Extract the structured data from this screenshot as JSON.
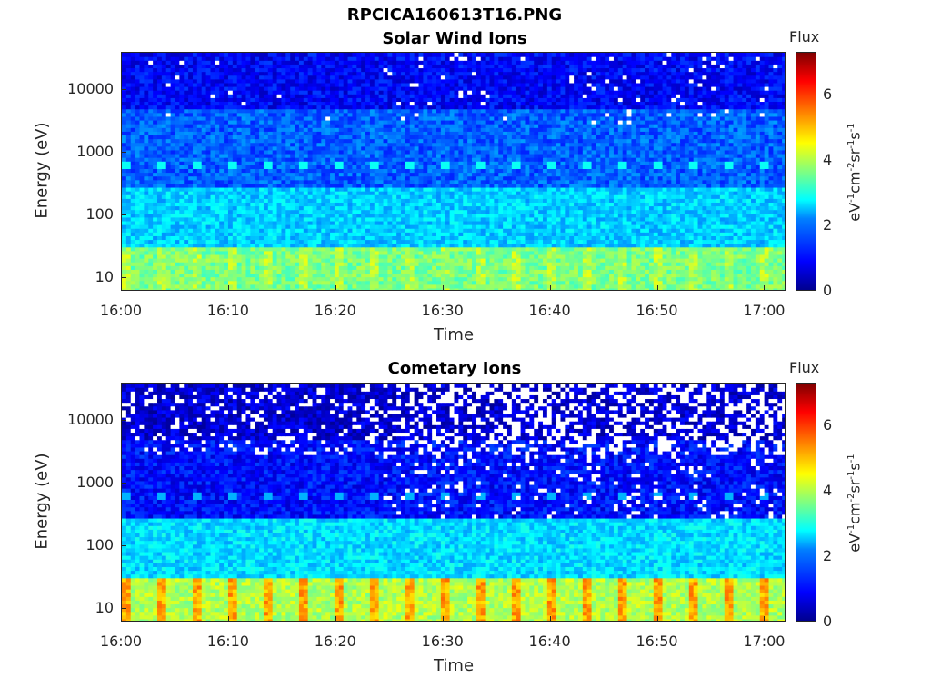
{
  "figure": {
    "filename_title": "RPCICA160613T16.PNG"
  },
  "chart_data": [
    {
      "type": "heatmap",
      "title": "Solar Wind Ions",
      "xlabel": "Time",
      "ylabel": "Energy (eV)",
      "x_ticks": [
        "16:00",
        "16:10",
        "16:20",
        "16:30",
        "16:40",
        "16:50",
        "17:00"
      ],
      "x_range": [
        "16:00",
        "17:02"
      ],
      "y_scale": "log",
      "y_ticks": [
        "10",
        "100",
        "1000",
        "10000"
      ],
      "y_range": [
        6,
        40000
      ],
      "colorbar": {
        "title": "Flux",
        "label": "eV-1cm-2sr-1s-1",
        "ticks": [
          "0",
          "2",
          "4",
          "6"
        ],
        "range": [
          0,
          7.3
        ]
      },
      "description_bands": [
        {
          "energy_range": [
            6,
            30
          ],
          "flux_level": 3.6
        },
        {
          "energy_range": [
            30,
            300
          ],
          "flux_level": 2.4
        },
        {
          "energy_range": [
            300,
            5000
          ],
          "flux_level": 1.6
        },
        {
          "energy_range": [
            5000,
            40000
          ],
          "flux_level": 0.9
        }
      ],
      "periodic_feature": {
        "energy": 650,
        "flux_level": 2.8
      }
    },
    {
      "type": "heatmap",
      "title": "Cometary Ions",
      "xlabel": "Time",
      "ylabel": "Energy (eV)",
      "x_ticks": [
        "16:00",
        "16:10",
        "16:20",
        "16:30",
        "16:40",
        "16:50",
        "17:00"
      ],
      "x_range": [
        "16:00",
        "17:02"
      ],
      "y_scale": "log",
      "y_ticks": [
        "10",
        "100",
        "1000",
        "10000"
      ],
      "y_range": [
        6,
        40000
      ],
      "colorbar": {
        "title": "Flux",
        "label": "eV-1cm-2sr-1s-1",
        "ticks": [
          "0",
          "2",
          "4",
          "6"
        ],
        "range": [
          0,
          7.3
        ]
      },
      "description_bands": [
        {
          "energy_range": [
            6,
            30
          ],
          "flux_level": 4.0
        },
        {
          "energy_range": [
            30,
            300
          ],
          "flux_level": 2.5
        },
        {
          "energy_range": [
            300,
            5000
          ],
          "flux_level": 1.0
        },
        {
          "energy_range": [
            5000,
            40000
          ],
          "flux_level": 0.6
        }
      ],
      "periodic_feature": {
        "energy": 650,
        "flux_level": 2.2
      }
    }
  ]
}
